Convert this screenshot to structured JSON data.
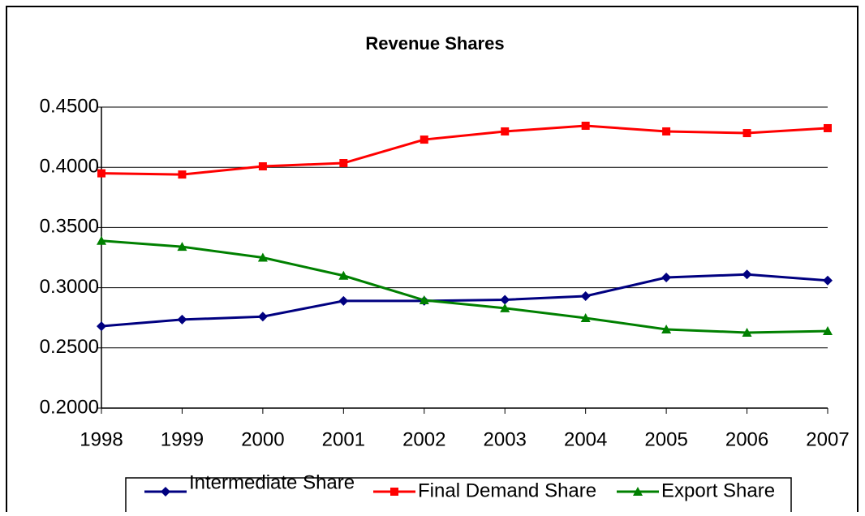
{
  "chart_data": {
    "type": "line",
    "title": "Revenue Shares",
    "categories": [
      "1998",
      "1999",
      "2000",
      "2001",
      "2002",
      "2003",
      "2004",
      "2005",
      "2006",
      "2007"
    ],
    "series": [
      {
        "name": "Intermediate Share",
        "color": "#000080",
        "marker": "diamond",
        "values": [
          0.268,
          0.2735,
          0.276,
          0.289,
          0.289,
          0.29,
          0.293,
          0.3085,
          0.311,
          0.306
        ]
      },
      {
        "name": "Final Demand Share",
        "color": "#ff0000",
        "marker": "square",
        "values": [
          0.395,
          0.394,
          0.4008,
          0.4035,
          0.423,
          0.4298,
          0.4345,
          0.4298,
          0.4284,
          0.4325
        ]
      },
      {
        "name": "Export Share",
        "color": "#008000",
        "marker": "triangle",
        "values": [
          0.339,
          0.334,
          0.325,
          0.31,
          0.2896,
          0.283,
          0.2748,
          0.2654,
          0.2627,
          0.264
        ]
      }
    ],
    "ylim": [
      0.2,
      0.45
    ],
    "yticks": [
      {
        "value": 0.2,
        "label": "0.2000"
      },
      {
        "value": 0.25,
        "label": "0.2500"
      },
      {
        "value": 0.3,
        "label": "0.3000"
      },
      {
        "value": 0.35,
        "label": "0.3500"
      },
      {
        "value": 0.4,
        "label": "0.4000"
      },
      {
        "value": 0.45,
        "label": "0.4500"
      }
    ],
    "grid": true,
    "legend": "bottom"
  }
}
